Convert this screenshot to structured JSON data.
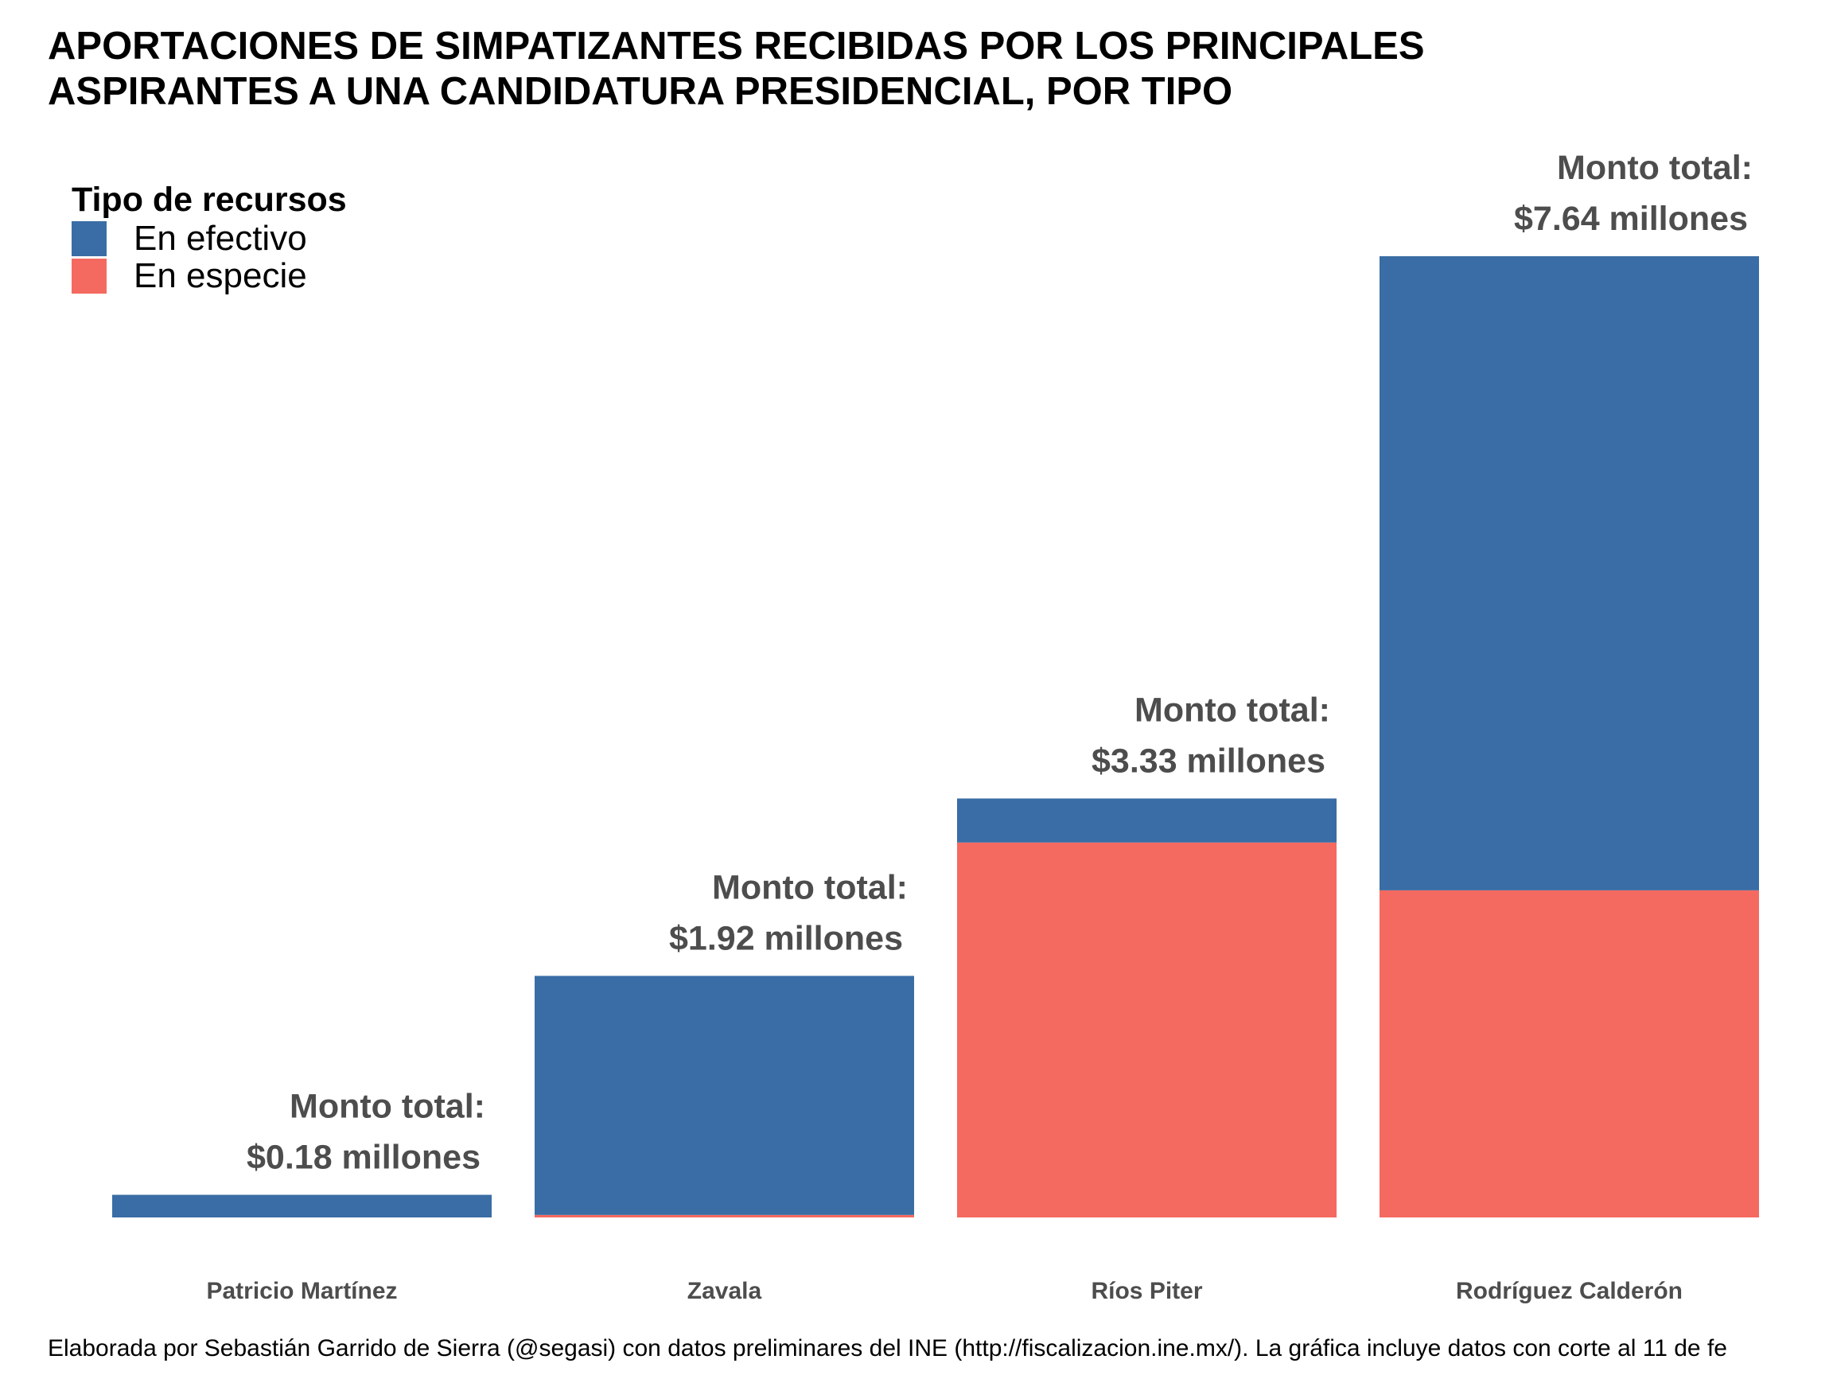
{
  "title_lines": [
    "APORTACIONES DE SIMPATIZANTES RECIBIDAS POR LOS PRINCIPALES",
    "ASPIRANTES A UNA CANDIDATURA PRESIDENCIAL, POR TIPO"
  ],
  "legend": {
    "title": "Tipo de recursos",
    "position": "top-left",
    "items": [
      {
        "label": "En efectivo",
        "color": "#3A6DA5"
      },
      {
        "label": "En especie",
        "color": "#F46A60"
      }
    ]
  },
  "caption": "Elaborada por Sebastián Garrido de Sierra (@segasi) con datos preliminares del INE (http://fiscalizacion.ine.mx/). La gráfica incluye datos con corte al 11 de fe",
  "chart_data": {
    "type": "bar",
    "stacked": true,
    "categories": [
      "Patricio Martínez",
      "Zavala",
      "Ríos Piter",
      "Rodríguez Calderón"
    ],
    "series": [
      {
        "name": "En efectivo",
        "color": "#3A6DA5",
        "values": [
          0.18,
          1.9,
          0.35,
          5.04
        ]
      },
      {
        "name": "En especie",
        "color": "#F46A60",
        "values": [
          0.0,
          0.02,
          2.98,
          2.6
        ]
      }
    ],
    "total_label_prefix": "Monto total:",
    "total_labels": [
      "$0.18 millones",
      "$1.92 millones",
      "$3.33 millones",
      "$7.64 millones"
    ],
    "totals": [
      0.18,
      1.92,
      3.33,
      7.64
    ],
    "ylim": [
      0,
      7.64
    ],
    "grid": false,
    "xlabel": "",
    "ylabel": ""
  }
}
